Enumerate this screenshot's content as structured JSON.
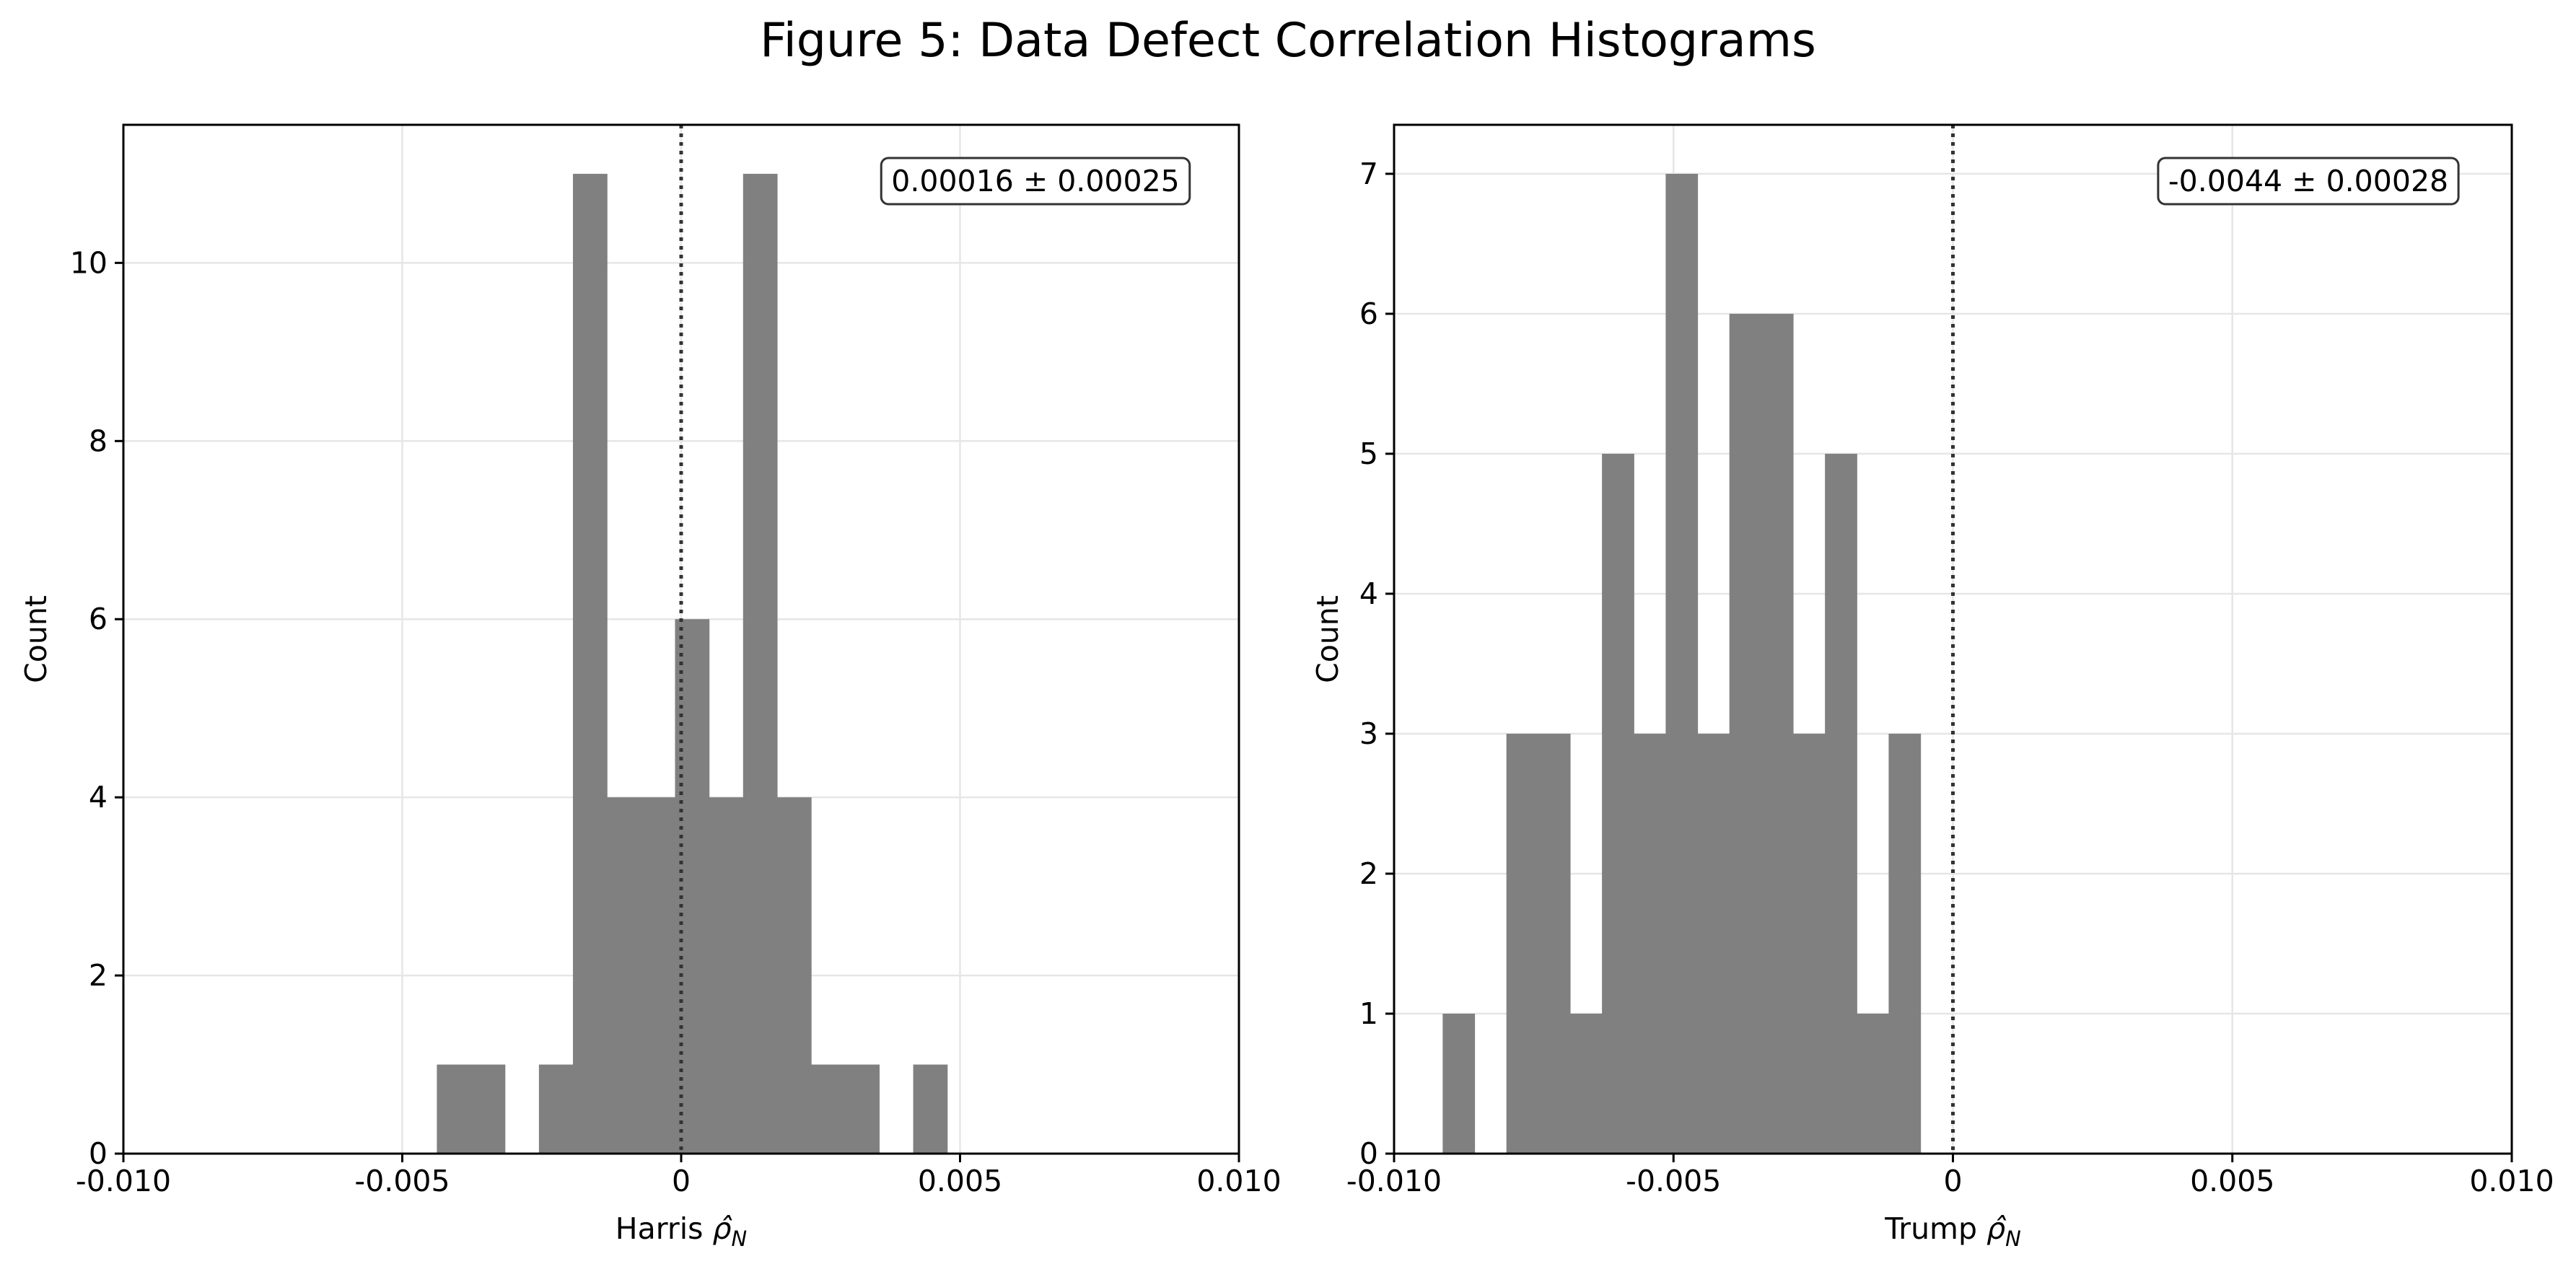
{
  "figure": {
    "title": "Figure 5: Data Defect Correlation Histograms"
  },
  "colors": {
    "bar": "#808080",
    "grid": "#e6e6e6",
    "axis": "#000000",
    "reference_line": "#333333",
    "annotation_border": "#333333"
  },
  "chart_data": [
    {
      "type": "bar",
      "subtype": "histogram",
      "xlabel": "Harris",
      "xlabel_symbol": "ρ̂",
      "xlabel_subscript": "N",
      "ylabel": "Count",
      "xlim": [
        -0.01,
        0.01
      ],
      "ylim": [
        0,
        11.55
      ],
      "xticks": [
        -0.01,
        -0.005,
        0,
        0.005,
        0.01
      ],
      "xtick_labels": [
        "-0.010",
        "-0.005",
        "0",
        "0.005",
        "0.010"
      ],
      "yticks": [
        0,
        2,
        4,
        6,
        8,
        10
      ],
      "ytick_labels": [
        "0",
        "2",
        "4",
        "6",
        "8",
        "10"
      ],
      "grid": true,
      "reference_line_x": 0,
      "annotation": "0.00016 ± 0.00025",
      "annotation_position": "top-right",
      "bins": [
        {
          "x0": -0.00438,
          "x1": -0.00377,
          "count": 1
        },
        {
          "x0": -0.00377,
          "x1": -0.00316,
          "count": 1
        },
        {
          "x0": -0.00255,
          "x1": -0.00194,
          "count": 1
        },
        {
          "x0": -0.00194,
          "x1": -0.00133,
          "count": 11
        },
        {
          "x0": -0.00133,
          "x1": -0.00072,
          "count": 4
        },
        {
          "x0": -0.00072,
          "x1": -0.00011,
          "count": 4
        },
        {
          "x0": -0.00011,
          "x1": 0.0005,
          "count": 6
        },
        {
          "x0": 0.0005,
          "x1": 0.00111,
          "count": 4
        },
        {
          "x0": 0.00111,
          "x1": 0.00172,
          "count": 11
        },
        {
          "x0": 0.00172,
          "x1": 0.00233,
          "count": 4
        },
        {
          "x0": 0.00233,
          "x1": 0.00294,
          "count": 1
        },
        {
          "x0": 0.00294,
          "x1": 0.00355,
          "count": 1
        },
        {
          "x0": 0.00416,
          "x1": 0.00477,
          "count": 1
        }
      ]
    },
    {
      "type": "bar",
      "subtype": "histogram",
      "xlabel": "Trump",
      "xlabel_symbol": "ρ̂",
      "xlabel_subscript": "N",
      "ylabel": "Count",
      "xlim": [
        -0.01,
        0.01
      ],
      "ylim": [
        0,
        7.35
      ],
      "xticks": [
        -0.01,
        -0.005,
        0,
        0.005,
        0.01
      ],
      "xtick_labels": [
        "-0.010",
        "-0.005",
        "0",
        "0.005",
        "0.010"
      ],
      "yticks": [
        0,
        1,
        2,
        3,
        4,
        5,
        6,
        7
      ],
      "ytick_labels": [
        "0",
        "1",
        "2",
        "3",
        "4",
        "5",
        "6",
        "7"
      ],
      "grid": true,
      "reference_line_x": 0,
      "annotation": "-0.0044 ± 0.00028",
      "annotation_position": "top-right",
      "bins": [
        {
          "x0": -0.00913,
          "x1": -0.00856,
          "count": 1
        },
        {
          "x0": -0.00799,
          "x1": -0.00742,
          "count": 3
        },
        {
          "x0": -0.00742,
          "x1": -0.00685,
          "count": 3
        },
        {
          "x0": -0.00685,
          "x1": -0.00628,
          "count": 1
        },
        {
          "x0": -0.00628,
          "x1": -0.00571,
          "count": 5
        },
        {
          "x0": -0.00571,
          "x1": -0.00514,
          "count": 3
        },
        {
          "x0": -0.00514,
          "x1": -0.00457,
          "count": 7
        },
        {
          "x0": -0.00457,
          "x1": -0.004,
          "count": 3
        },
        {
          "x0": -0.004,
          "x1": -0.00343,
          "count": 6
        },
        {
          "x0": -0.00343,
          "x1": -0.00286,
          "count": 6
        },
        {
          "x0": -0.00286,
          "x1": -0.00229,
          "count": 3
        },
        {
          "x0": -0.00229,
          "x1": -0.00172,
          "count": 5
        },
        {
          "x0": -0.00172,
          "x1": -0.00115,
          "count": 1
        },
        {
          "x0": -0.00115,
          "x1": -0.00058,
          "count": 3
        }
      ]
    }
  ]
}
